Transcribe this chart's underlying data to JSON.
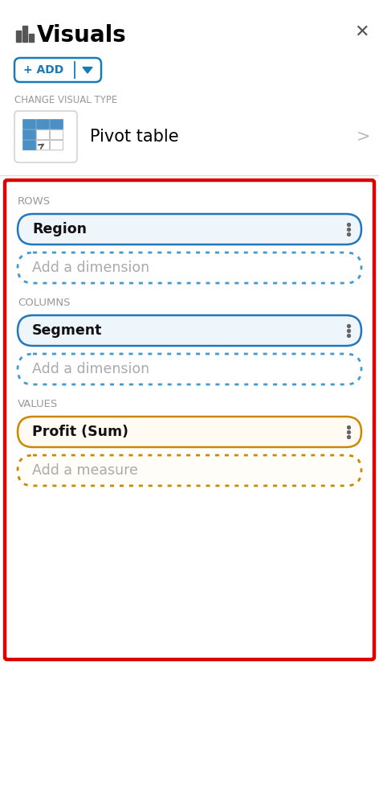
{
  "bg_color": "#ffffff",
  "title": "Visuals",
  "title_fontsize": 20,
  "title_color": "#000000",
  "section_label_color": "#999999",
  "section_label_fontsize": 9.5,
  "add_btn_color": "#1a7ab5",
  "red_border_color": "#dd0000",
  "blue_solid_border": "#2277bb",
  "blue_fill": "#eef5fb",
  "blue_dotted_border": "#4499cc",
  "orange_solid_border": "#cc8800",
  "orange_fill": "#fffaf2",
  "orange_dotted_border": "#cc8800",
  "pill_text_color": "#111111",
  "placeholder_text_color": "#aaaaaa",
  "pill_fontsize": 12.5,
  "placeholder_fontsize": 12.5,
  "rows_label": "ROWS",
  "columns_label": "COLUMNS",
  "values_label": "VALUES",
  "region_text": "Region",
  "segment_text": "Segment",
  "profit_text": "Profit (Sum)",
  "add_dimension_text": "Add a dimension",
  "add_measure_text": "Add a measure",
  "pivot_table_text": "Pivot table",
  "change_visual_type": "CHANGE VISUAL TYPE",
  "close_color": "#555555",
  "sep_color": "#dddddd",
  "icon_color": "#555555",
  "grid_blue": "#4a90c4",
  "fig_w": 4.72,
  "fig_h": 9.86,
  "dpi": 100
}
